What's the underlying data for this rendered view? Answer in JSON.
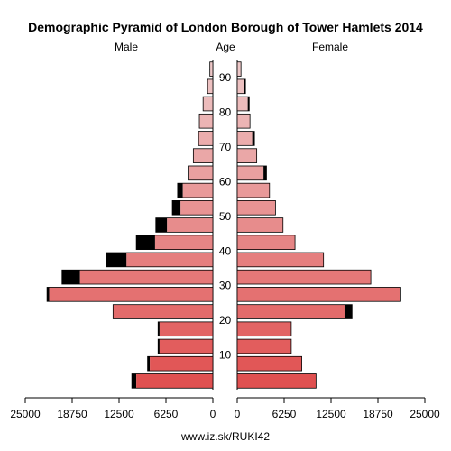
{
  "chart_data": {
    "type": "bar",
    "title": "Demographic Pyramid of London Borough of Tower Hamlets 2014",
    "left_label": "Male",
    "center_label": "Age",
    "right_label": "Female",
    "footer": "www.iz.sk/RUKI42",
    "age_ticks": [
      "10",
      "20",
      "30",
      "40",
      "50",
      "60",
      "70",
      "80",
      "90"
    ],
    "x_ticks_left": [
      "25000",
      "18750",
      "12500",
      "6250",
      "0"
    ],
    "x_ticks_right": [
      "0",
      "6250",
      "12500",
      "18750",
      "25000"
    ],
    "xlim": [
      0,
      25000
    ],
    "age_groups": [
      "0-4",
      "5-9",
      "10-14",
      "15-19",
      "20-24",
      "25-29",
      "30-34",
      "35-39",
      "40-44",
      "45-49",
      "50-54",
      "55-59",
      "60-64",
      "65-69",
      "70-74",
      "75-79",
      "80-84",
      "85-89",
      "90+"
    ],
    "series": [
      {
        "name": "Male",
        "values": [
          10800,
          8700,
          7300,
          7300,
          13300,
          22100,
          20100,
          14200,
          10200,
          7600,
          5400,
          4700,
          3300,
          2600,
          1900,
          1800,
          1300,
          700,
          400
        ]
      },
      {
        "name": "Female",
        "values": [
          10500,
          8600,
          7200,
          7200,
          14300,
          21800,
          17800,
          11500,
          7700,
          6100,
          5100,
          4300,
          3500,
          2600,
          2000,
          1700,
          1400,
          900,
          500
        ]
      }
    ],
    "black_extent": [
      {
        "name": "Male",
        "values": [
          600,
          300,
          200,
          200,
          0,
          300,
          2400,
          2700,
          2500,
          1500,
          1100,
          700,
          0,
          0,
          0,
          0,
          0,
          0,
          0
        ]
      },
      {
        "name": "Female",
        "values": [
          0,
          0,
          0,
          0,
          1000,
          0,
          0,
          0,
          0,
          0,
          0,
          0,
          400,
          0,
          300,
          0,
          200,
          200,
          0
        ]
      }
    ],
    "colors": {
      "bar_low": "#e05050",
      "bar_high": "#eec8c8",
      "excess": "#000000",
      "stroke": "#000000"
    }
  }
}
